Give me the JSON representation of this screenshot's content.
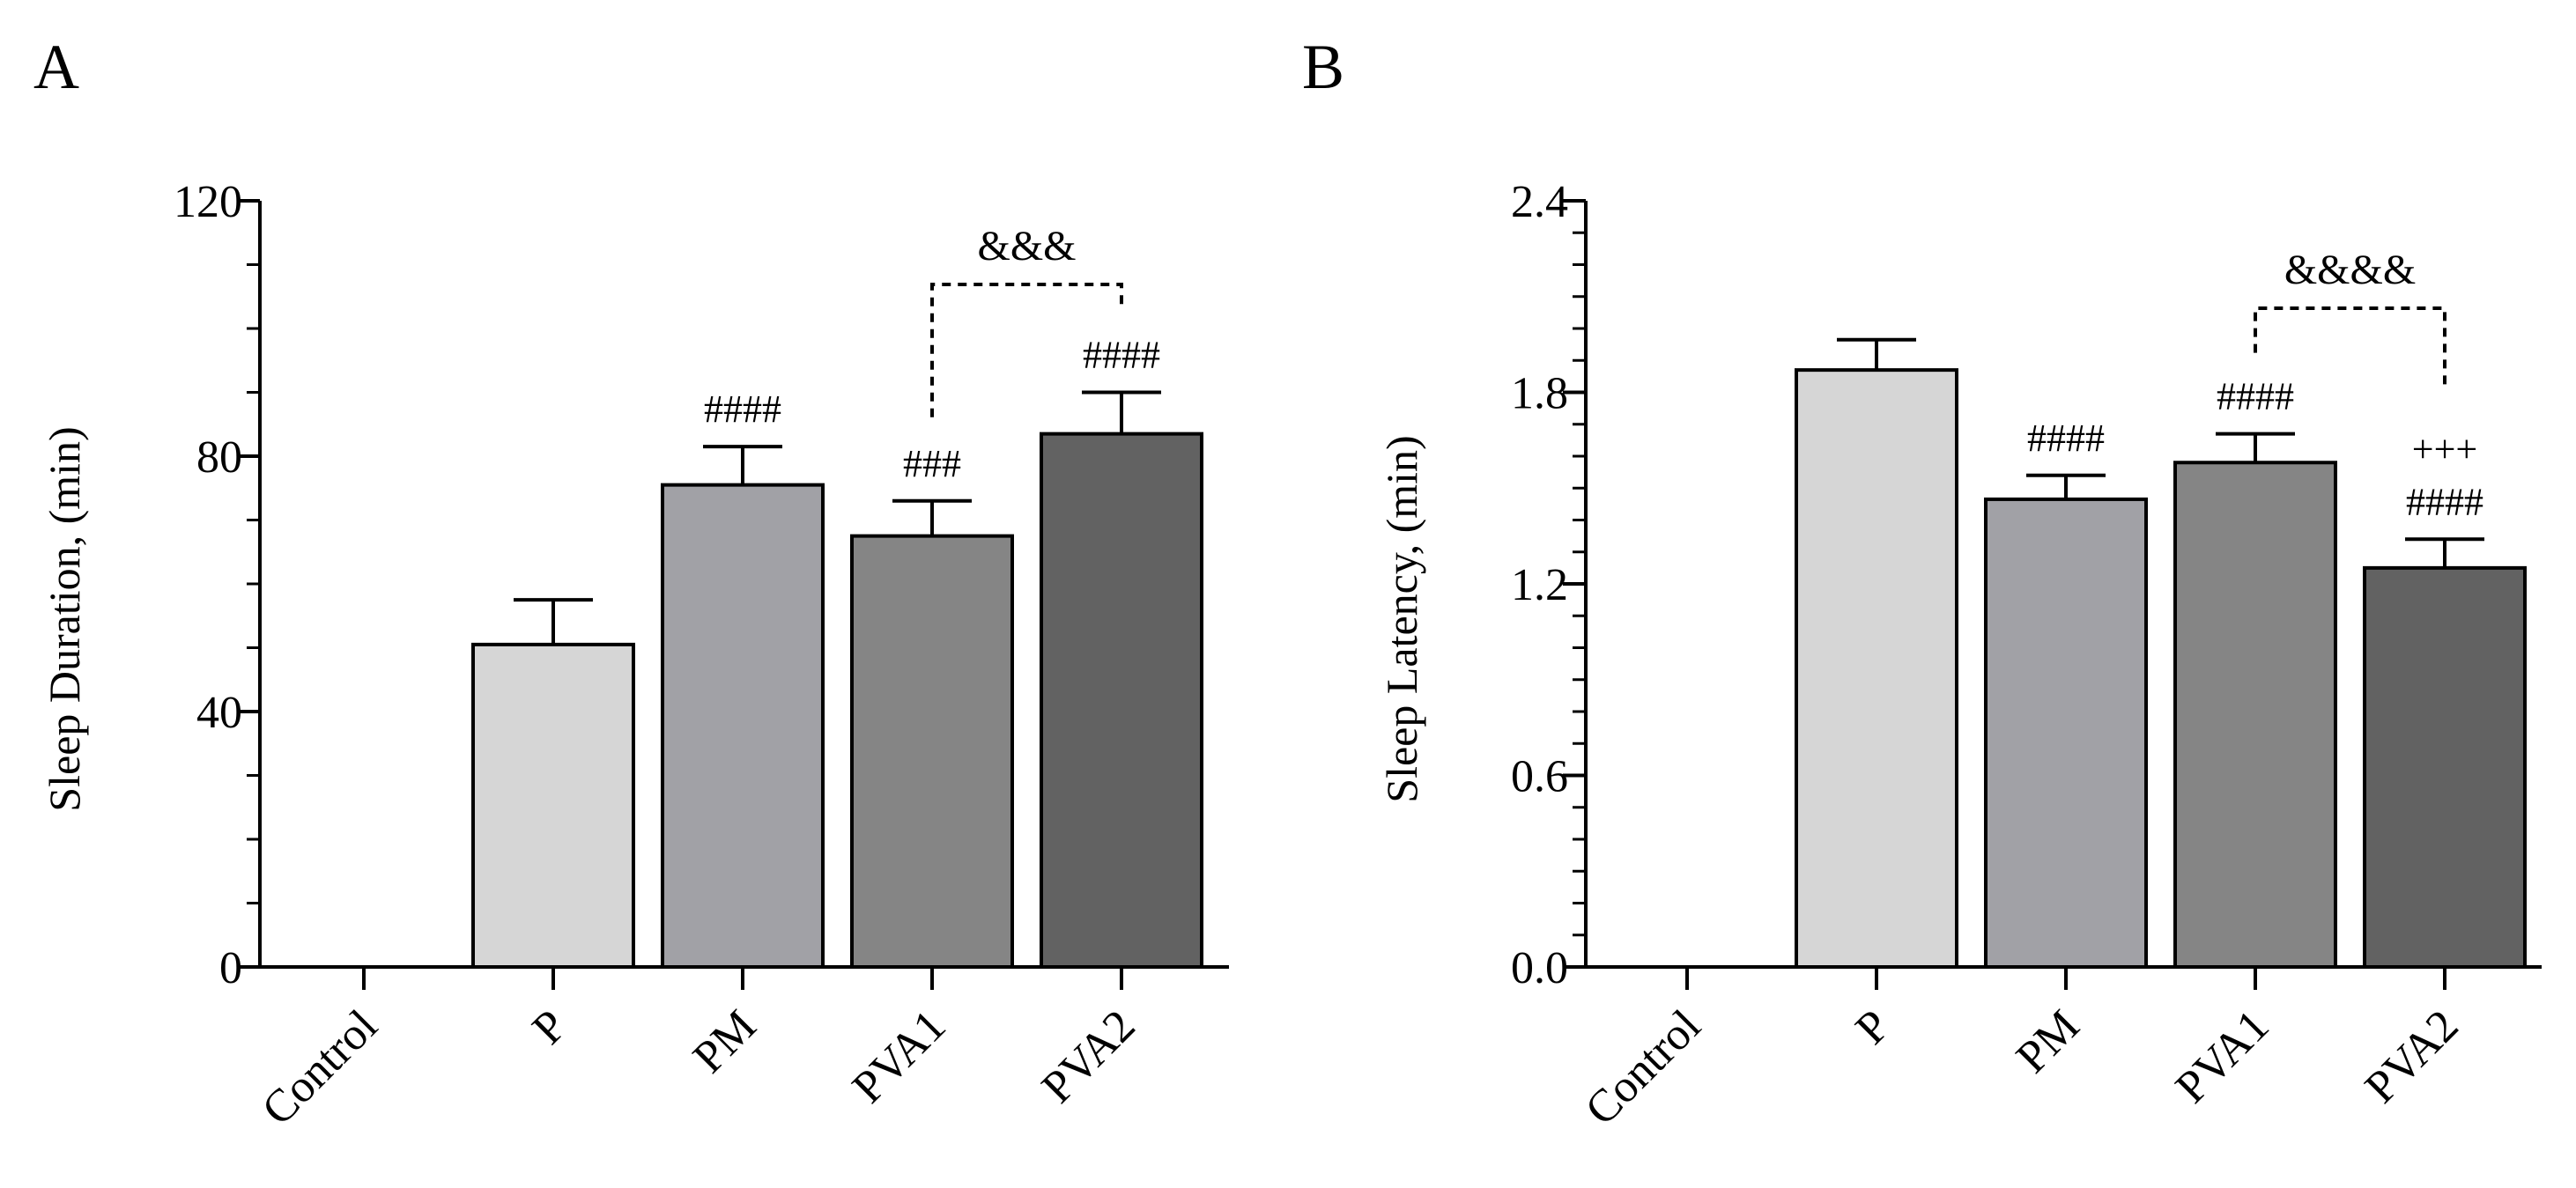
{
  "chart_data": [
    {
      "panel": "A",
      "type": "bar",
      "title": "",
      "xlabel": "",
      "ylabel": "Sleep Duration, (min)",
      "ylim": [
        0,
        120
      ],
      "yticks": [
        0,
        40,
        80,
        120
      ],
      "ytick_labels": [
        "0",
        "40",
        "80",
        "120"
      ],
      "minor_ticks_per_interval": 4,
      "categories": [
        "Control",
        "P",
        "PM",
        "PVA1",
        "PVA2"
      ],
      "values": [
        0,
        50.5,
        75.5,
        67.5,
        83.5
      ],
      "errors": [
        0,
        7,
        6,
        5.5,
        6.5
      ],
      "colors": [
        "#ffffff",
        "#d6d6d6",
        "#a1a1a6",
        "#858585",
        "#626262"
      ],
      "annotations": [
        "",
        "",
        "####",
        "###",
        "####"
      ],
      "brackets": [
        {
          "from": 3,
          "to": 4,
          "label": "&&&"
        }
      ]
    },
    {
      "panel": "B",
      "type": "bar",
      "title": "",
      "xlabel": "",
      "ylabel": "Sleep Latency, (min)",
      "ylim": [
        0,
        2.4
      ],
      "yticks": [
        0,
        0.6,
        1.2,
        1.8,
        2.4
      ],
      "ytick_labels": [
        "0.0",
        "0.6",
        "1.2",
        "1.8",
        "2.4"
      ],
      "minor_ticks_per_interval": 6,
      "categories": [
        "Control",
        "P",
        "PM",
        "PVA1",
        "PVA2"
      ],
      "values": [
        0,
        1.87,
        1.465,
        1.58,
        1.25
      ],
      "errors": [
        0,
        0.095,
        0.075,
        0.09,
        0.09
      ],
      "colors": [
        "#ffffff",
        "#d6d6d6",
        "#a1a1a6",
        "#858585",
        "#626262"
      ],
      "annotations": [
        "",
        "",
        "####",
        "####",
        "+++\n####"
      ],
      "brackets": [
        {
          "from": 3,
          "to": 4,
          "label": "&&&&"
        }
      ]
    }
  ]
}
